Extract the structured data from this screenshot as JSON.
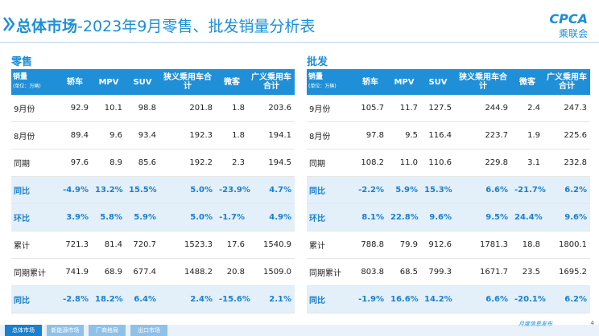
{
  "header": {
    "title_bold": "总体市场",
    "title_rest": "-2023年9月零售、批发销量分析表",
    "logo_text": "CPCA",
    "logo_cn": "乘联会"
  },
  "tables": [
    {
      "section": "零售",
      "corner": "销量",
      "unit": "(单位：万辆)",
      "columns": [
        "轿车",
        "MPV",
        "SUV",
        "狭义乘用车合计",
        "微客",
        "广义乘用车合计"
      ],
      "rows": [
        [
          "9月份",
          "92.9",
          "10.1",
          "98.8",
          "201.8",
          "1.8",
          "203.6"
        ],
        [
          "8月份",
          "89.4",
          "9.6",
          "93.4",
          "192.3",
          "1.8",
          "194.1"
        ],
        [
          "同期",
          "97.6",
          "8.9",
          "85.6",
          "192.2",
          "2.3",
          "194.5"
        ],
        [
          "同比",
          "-4.9%",
          "13.2%",
          "15.5%",
          "5.0%",
          "-23.9%",
          "4.7%"
        ],
        [
          "环比",
          "3.9%",
          "5.8%",
          "5.9%",
          "5.0%",
          "-1.7%",
          "4.9%"
        ],
        [
          "累计",
          "721.3",
          "81.4",
          "720.7",
          "1523.3",
          "17.6",
          "1540.9"
        ],
        [
          "同期累计",
          "741.9",
          "68.9",
          "677.4",
          "1488.2",
          "20.8",
          "1509.0"
        ],
        [
          "同比",
          "-2.8%",
          "18.2%",
          "6.4%",
          "2.4%",
          "-15.6%",
          "2.1%"
        ]
      ]
    },
    {
      "section": "批发",
      "corner": "销量",
      "unit": "(单位：万辆)",
      "columns": [
        "轿车",
        "MPV",
        "SUV",
        "狭义乘用车合计",
        "微客",
        "广义乘用车合计"
      ],
      "rows": [
        [
          "9月份",
          "105.7",
          "11.7",
          "127.5",
          "244.9",
          "2.4",
          "247.3"
        ],
        [
          "8月份",
          "97.8",
          "9.5",
          "116.4",
          "223.7",
          "1.9",
          "225.6"
        ],
        [
          "同期",
          "108.2",
          "11.0",
          "110.6",
          "229.8",
          "3.1",
          "232.8"
        ],
        [
          "同比",
          "-2.2%",
          "5.9%",
          "15.3%",
          "6.6%",
          "-21.7%",
          "6.2%"
        ],
        [
          "环比",
          "8.1%",
          "22.8%",
          "9.6%",
          "9.5%",
          "24.4%",
          "9.6%"
        ],
        [
          "累计",
          "788.8",
          "79.9",
          "912.6",
          "1781.3",
          "18.8",
          "1800.1"
        ],
        [
          "同期累计",
          "803.8",
          "68.5",
          "799.3",
          "1671.7",
          "23.5",
          "1695.2"
        ],
        [
          "同比",
          "-1.9%",
          "16.6%",
          "14.2%",
          "6.6%",
          "-20.1%",
          "6.2%"
        ]
      ]
    }
  ],
  "footer": {
    "tabs": [
      "总体市场",
      "新能源市场",
      "厂商格局",
      "出口市场"
    ],
    "slogan": "月度信息发布",
    "page": "4"
  }
}
